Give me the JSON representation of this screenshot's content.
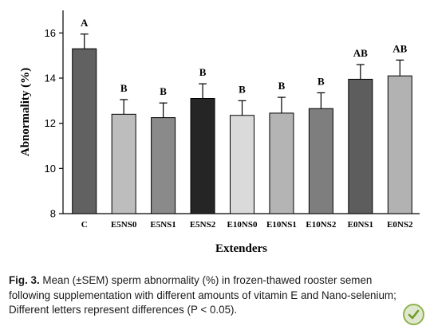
{
  "chart_data": {
    "type": "bar",
    "xlabel": "Extenders",
    "ylabel": "Abnormality (%)",
    "ylim": [
      8,
      17
    ],
    "yticks": [
      8,
      10,
      12,
      14,
      16
    ],
    "categories": [
      "C",
      "E5NS0",
      "E5NS1",
      "E5NS2",
      "E10NS0",
      "E10NS1",
      "E10NS2",
      "E0NS1",
      "E0NS2"
    ],
    "values": [
      15.3,
      12.4,
      12.25,
      13.1,
      12.35,
      12.45,
      12.65,
      13.95,
      14.1
    ],
    "errors": [
      0.65,
      0.65,
      0.65,
      0.65,
      0.65,
      0.7,
      0.7,
      0.65,
      0.7
    ],
    "significance": [
      "A",
      "B",
      "B",
      "B",
      "B",
      "B",
      "B",
      "AB",
      "AB"
    ],
    "colors": [
      "#616161",
      "#bdbdbd",
      "#8a8a8a",
      "#252525",
      "#dadada",
      "#b4b4b4",
      "#7e7e7e",
      "#5d5d5d",
      "#b2b2b2"
    ]
  },
  "caption": {
    "label": "Fig. 3.",
    "text": " Mean (±SEM) sperm abnormality (%) in frozen-thawed rooster semen following supplementation with different amounts of vitamin E and Nano-selenium; Different letters represent differences (P < 0.05)."
  },
  "badge_icon": "crossmark-icon"
}
